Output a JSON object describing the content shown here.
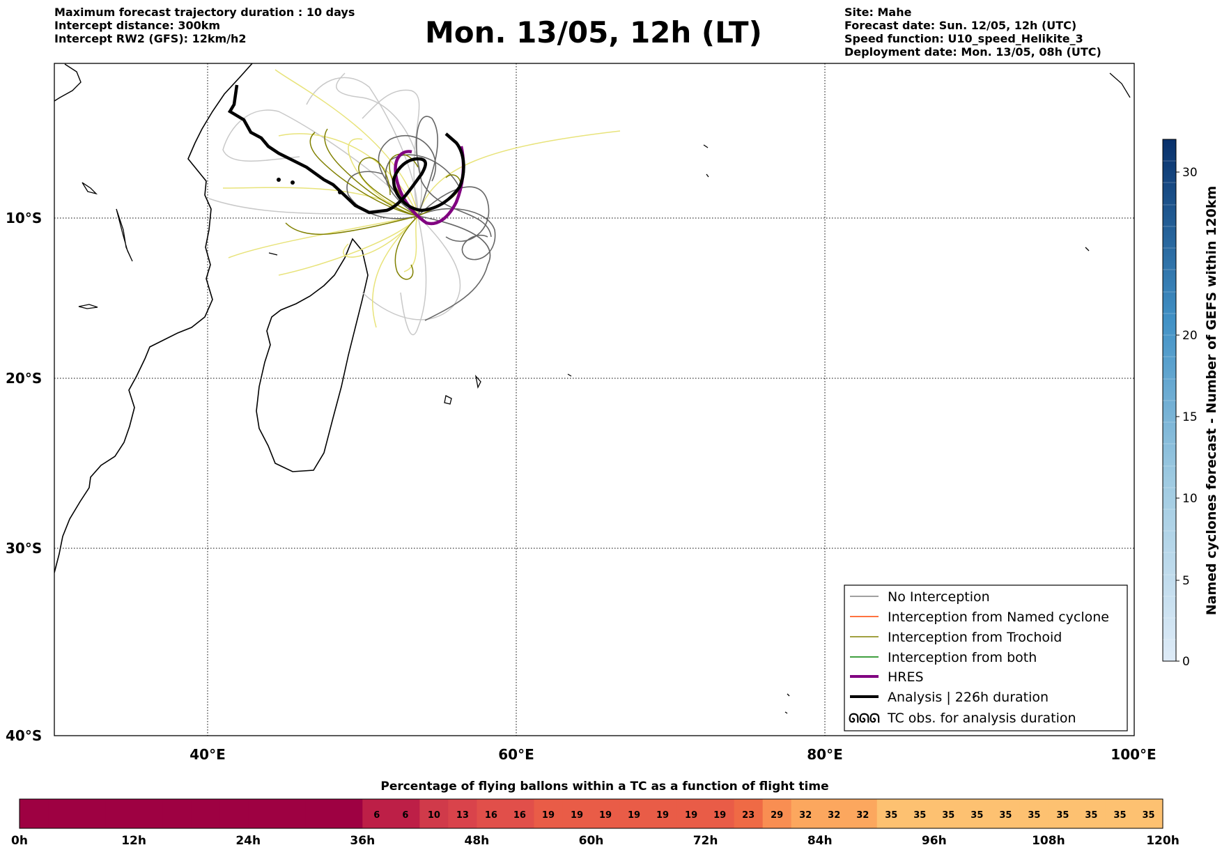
{
  "header": {
    "info_left": [
      "Maximum forecast trajectory duration : 10 days",
      "Intercept distance: 300km",
      "Intercept RW2 (GFS):  12km/h2"
    ],
    "title": "Mon. 13/05, 12h (LT)",
    "info_right": [
      "Site: Mahe",
      "Forecast date: Sun. 12/05, 12h (UTC)",
      "Speed function: U10_speed_Helikite_3",
      "Deployment date: Mon. 13/05, 08h (UTC)"
    ]
  },
  "map": {
    "lon_range": [
      30,
      100
    ],
    "lat_range": [
      -40,
      2
    ],
    "lat_labels": [
      "10°S",
      "20°S",
      "30°S",
      "40°S"
    ],
    "lon_labels": [
      "40°E",
      "60°E",
      "80°E",
      "100°E"
    ]
  },
  "legend": {
    "items": [
      {
        "label": "No Interception",
        "color": "#808080"
      },
      {
        "label": "Interception from Named cyclone",
        "color": "#ff4500"
      },
      {
        "label": "Interception from Trochoid",
        "color": "#808000"
      },
      {
        "label": "Interception from both",
        "color": "#008000"
      },
      {
        "label": "HRES",
        "color": "#800080"
      },
      {
        "label": "Analysis | 226h duration",
        "color": "#000000"
      },
      {
        "label": "TC obs. for analysis duration",
        "color": "#000000"
      }
    ]
  },
  "colorbar_right": {
    "label": "Named cyclones forecast - Number of GEFS within 120km",
    "ticks": [
      "0",
      "5",
      "10",
      "15",
      "20",
      "30"
    ]
  },
  "bottom_bar": {
    "title": "Percentage of flying ballons within a TC as a function of flight time",
    "time_labels": [
      "0h",
      "12h",
      "24h",
      "36h",
      "48h",
      "60h",
      "72h",
      "84h",
      "96h",
      "108h",
      "120h"
    ],
    "cells": [
      {
        "v": "",
        "c": "#9e0142"
      },
      {
        "v": "",
        "c": "#9e0142"
      },
      {
        "v": "",
        "c": "#9e0142"
      },
      {
        "v": "",
        "c": "#9e0142"
      },
      {
        "v": "",
        "c": "#9e0142"
      },
      {
        "v": "",
        "c": "#9e0142"
      },
      {
        "v": "",
        "c": "#9e0142"
      },
      {
        "v": "",
        "c": "#9e0142"
      },
      {
        "v": "",
        "c": "#9e0142"
      },
      {
        "v": "",
        "c": "#9e0142"
      },
      {
        "v": "",
        "c": "#9e0142"
      },
      {
        "v": "",
        "c": "#9e0142"
      },
      {
        "v": "6",
        "c": "#bd1f47"
      },
      {
        "v": "6",
        "c": "#bd1f47"
      },
      {
        "v": "10",
        "c": "#d03a4a"
      },
      {
        "v": "13",
        "c": "#d9434b"
      },
      {
        "v": "16",
        "c": "#e14f4a"
      },
      {
        "v": "16",
        "c": "#e14f4a"
      },
      {
        "v": "19",
        "c": "#e95c47"
      },
      {
        "v": "19",
        "c": "#e95c47"
      },
      {
        "v": "19",
        "c": "#e95c47"
      },
      {
        "v": "19",
        "c": "#e95c47"
      },
      {
        "v": "19",
        "c": "#e95c47"
      },
      {
        "v": "19",
        "c": "#e95c47"
      },
      {
        "v": "19",
        "c": "#e95c47"
      },
      {
        "v": "23",
        "c": "#ef6a45"
      },
      {
        "v": "29",
        "c": "#f98e52"
      },
      {
        "v": "32",
        "c": "#fca75e"
      },
      {
        "v": "32",
        "c": "#fca75e"
      },
      {
        "v": "32",
        "c": "#fca75e"
      },
      {
        "v": "35",
        "c": "#fdc171"
      },
      {
        "v": "35",
        "c": "#fdc171"
      },
      {
        "v": "35",
        "c": "#fdc171"
      },
      {
        "v": "35",
        "c": "#fdc171"
      },
      {
        "v": "35",
        "c": "#fdc171"
      },
      {
        "v": "35",
        "c": "#fdc171"
      },
      {
        "v": "35",
        "c": "#fdc171"
      },
      {
        "v": "35",
        "c": "#fdc171"
      },
      {
        "v": "35",
        "c": "#fdc171"
      },
      {
        "v": "35",
        "c": "#fdc171"
      }
    ]
  }
}
